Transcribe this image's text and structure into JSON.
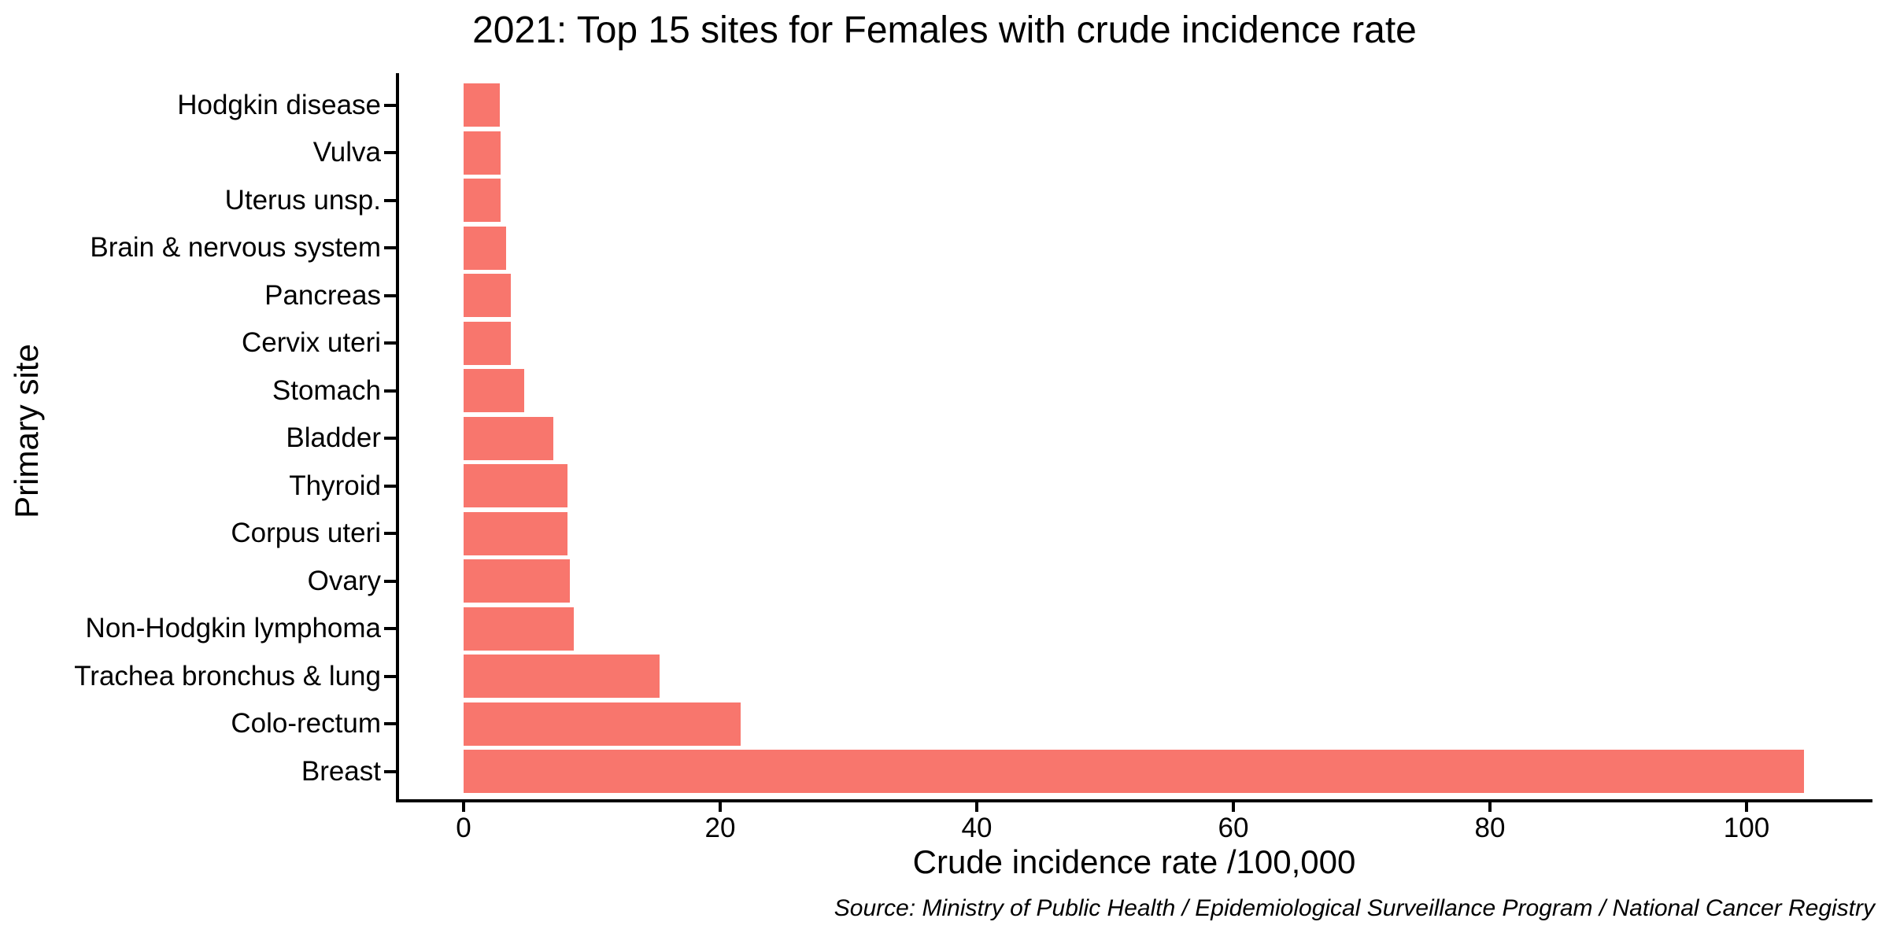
{
  "chart_data": {
    "type": "bar",
    "orientation": "horizontal",
    "title": "2021: Top 15 sites for Females with crude incidence rate",
    "xlabel": "Crude incidence rate /100,000",
    "ylabel": "Primary site",
    "source_note": "Source: Ministry of Public Health / Epidemiological Surveillance Program / National Cancer Registry",
    "categories": [
      "Hodgkin disease",
      "Vulva",
      "Uterus unsp.",
      "Brain & nervous system",
      "Pancreas",
      "Cervix uteri",
      "Stomach",
      "Bladder",
      "Thyroid",
      "Corpus uteri",
      "Ovary",
      "Non-Hodgkin lymphoma",
      "Trachea bronchus & lung",
      "Colo-rectum",
      "Breast"
    ],
    "values": [
      2.8,
      2.9,
      2.9,
      3.3,
      3.7,
      3.7,
      4.7,
      7.0,
      8.1,
      8.1,
      8.3,
      8.6,
      15.3,
      21.6,
      104.5
    ],
    "x_ticks": [
      0,
      20,
      40,
      60,
      80,
      100
    ],
    "xlim": [
      0,
      110
    ],
    "bar_color": "#F8766D",
    "axis_color": "#000000",
    "text_color": "#000000",
    "background_color": "#FFFFFF",
    "grid": false,
    "legend": "none",
    "sort_order": "ascending top to bottom"
  }
}
